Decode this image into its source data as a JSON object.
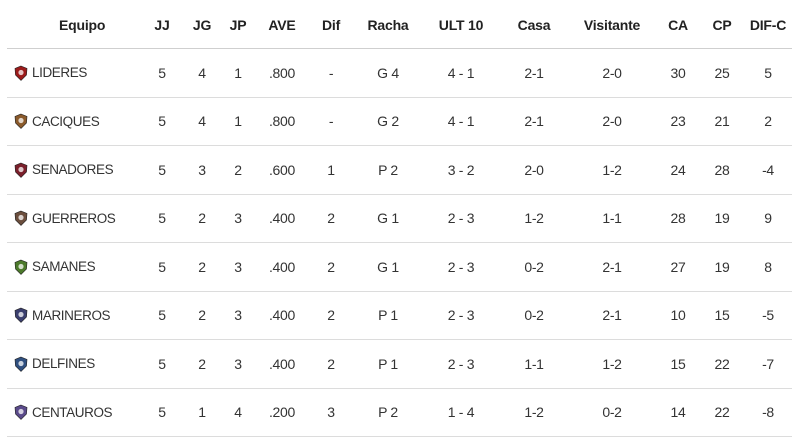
{
  "headers": {
    "team": "Equipo",
    "jj": "JJ",
    "jg": "JG",
    "jp": "JP",
    "ave": "AVE",
    "dif": "Dif",
    "racha": "Racha",
    "ult10": "ULT 10",
    "casa": "Casa",
    "visitante": "Visitante",
    "ca": "CA",
    "cp": "CP",
    "difc": "DIF-C"
  },
  "rows": [
    {
      "team": "LIDERES",
      "logo": "lideres-logo",
      "logo_color": "#9b1b1b",
      "jj": "5",
      "jg": "4",
      "jp": "1",
      "ave": ".800",
      "dif": "-",
      "racha": "G 4",
      "ult10": "4 - 1",
      "casa": "2-1",
      "visitante": "2-0",
      "ca": "30",
      "cp": "25",
      "difc": "5"
    },
    {
      "team": "CACIQUES",
      "logo": "caciques-logo",
      "logo_color": "#8a5a2b",
      "jj": "5",
      "jg": "4",
      "jp": "1",
      "ave": ".800",
      "dif": "-",
      "racha": "G 2",
      "ult10": "4 - 1",
      "casa": "2-1",
      "visitante": "2-0",
      "ca": "23",
      "cp": "21",
      "difc": "2"
    },
    {
      "team": "SENADORES",
      "logo": "senadores-logo",
      "logo_color": "#7a1f2b",
      "jj": "5",
      "jg": "3",
      "jp": "2",
      "ave": ".600",
      "dif": "1",
      "racha": "P 2",
      "ult10": "3 - 2",
      "casa": "2-0",
      "visitante": "1-2",
      "ca": "24",
      "cp": "28",
      "difc": "-4"
    },
    {
      "team": "GUERREROS",
      "logo": "guerreros-logo",
      "logo_color": "#6b4e3d",
      "jj": "5",
      "jg": "2",
      "jp": "3",
      "ave": ".400",
      "dif": "2",
      "racha": "G 1",
      "ult10": "2 - 3",
      "casa": "1-2",
      "visitante": "1-1",
      "ca": "28",
      "cp": "19",
      "difc": "9"
    },
    {
      "team": "SAMANES",
      "logo": "samanes-logo",
      "logo_color": "#4c7a2b",
      "jj": "5",
      "jg": "2",
      "jp": "3",
      "ave": ".400",
      "dif": "2",
      "racha": "G 1",
      "ult10": "2 - 3",
      "casa": "0-2",
      "visitante": "2-1",
      "ca": "27",
      "cp": "19",
      "difc": "8"
    },
    {
      "team": "MARINEROS",
      "logo": "marineros-logo",
      "logo_color": "#3b3f6e",
      "jj": "5",
      "jg": "2",
      "jp": "3",
      "ave": ".400",
      "dif": "2",
      "racha": "P 1",
      "ult10": "2 - 3",
      "casa": "0-2",
      "visitante": "2-1",
      "ca": "10",
      "cp": "15",
      "difc": "-5"
    },
    {
      "team": "DELFINES",
      "logo": "delfines-logo",
      "logo_color": "#2f4f7f",
      "jj": "5",
      "jg": "2",
      "jp": "3",
      "ave": ".400",
      "dif": "2",
      "racha": "P 1",
      "ult10": "2 - 3",
      "casa": "1-1",
      "visitante": "1-2",
      "ca": "15",
      "cp": "22",
      "difc": "-7"
    },
    {
      "team": "CENTAUROS",
      "logo": "centauros-logo",
      "logo_color": "#5a4a8a",
      "jj": "5",
      "jg": "1",
      "jp": "4",
      "ave": ".200",
      "dif": "3",
      "racha": "P 2",
      "ult10": "1 - 4",
      "casa": "1-2",
      "visitante": "0-2",
      "ca": "14",
      "cp": "22",
      "difc": "-8"
    }
  ]
}
